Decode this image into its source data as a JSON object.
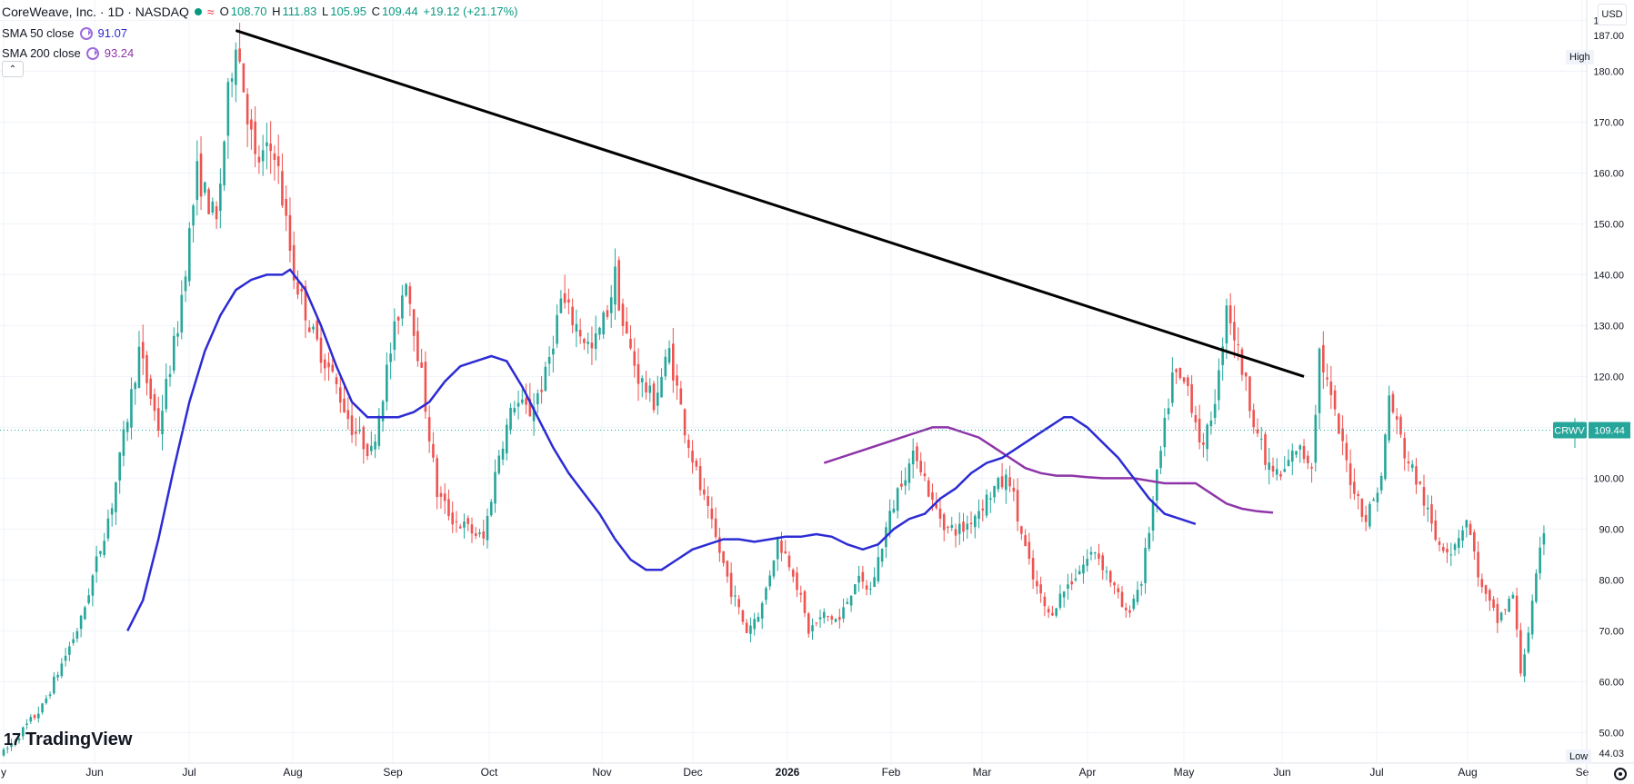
{
  "symbol": {
    "title": "CoreWeave, Inc. · 1D · NASDAQ",
    "ticker": "CRWV",
    "open_label": "O",
    "open": "108.70",
    "high_label": "H",
    "high": "111.83",
    "low_label": "L",
    "low": "105.95",
    "close_label": "C",
    "close": "109.44",
    "change": "+19.12 (+21.17%)",
    "status_icon": "market-status-dot",
    "wave_icon": "≈"
  },
  "indicators": [
    {
      "label": "SMA 50 close",
      "value": "91.07",
      "color": "#2c2bd4"
    },
    {
      "label": "SMA 200 close",
      "value": "93.24",
      "color": "#8e34a8"
    }
  ],
  "currency": "USD",
  "high_marker": {
    "label": "High",
    "value": "187.00"
  },
  "low_marker": {
    "label": "Low",
    "value": "44.03"
  },
  "price_tag": {
    "ticker": "CRWV",
    "value": "109.44"
  },
  "branding": {
    "name": "TradingView",
    "mark": "17"
  },
  "colors": {
    "up": "#089981",
    "down": "#f23645",
    "upCandle": "#26a69a",
    "downCandle": "#ef5350",
    "trendline": "#000000",
    "grid": "#f0f3fa"
  },
  "chart_data": {
    "type": "candlestick",
    "title": "CoreWeave, Inc. · 1D · NASDAQ",
    "ylim": [
      44,
      194
    ],
    "y_ticks": [
      "190.00",
      "180.00",
      "170.00",
      "160.00",
      "150.00",
      "140.00",
      "130.00",
      "120.00",
      "110.00",
      "100.00",
      "90.00",
      "80.00",
      "70.00",
      "60.00",
      "50.00"
    ],
    "x_labels": [
      "y",
      "Jun",
      "Jul",
      "Aug",
      "Sep",
      "Oct",
      "Nov",
      "Dec",
      "2026",
      "Feb",
      "Mar",
      "Apr",
      "May",
      "Jun",
      "Jul",
      "Aug",
      "Se"
    ],
    "grid": true,
    "price_anchors": [
      [
        0,
        46
      ],
      [
        10,
        55
      ],
      [
        20,
        72
      ],
      [
        28,
        95
      ],
      [
        35,
        125
      ],
      [
        40,
        110
      ],
      [
        45,
        130
      ],
      [
        50,
        160
      ],
      [
        55,
        150
      ],
      [
        58,
        175
      ],
      [
        60,
        187
      ],
      [
        65,
        162
      ],
      [
        70,
        165
      ],
      [
        75,
        140
      ],
      [
        80,
        128
      ],
      [
        85,
        120
      ],
      [
        90,
        110
      ],
      [
        95,
        105
      ],
      [
        100,
        125
      ],
      [
        104,
        140
      ],
      [
        108,
        120
      ],
      [
        112,
        97
      ],
      [
        116,
        92
      ],
      [
        120,
        90
      ],
      [
        124,
        88
      ],
      [
        128,
        105
      ],
      [
        132,
        115
      ],
      [
        136,
        113
      ],
      [
        140,
        120
      ],
      [
        144,
        135
      ],
      [
        148,
        130
      ],
      [
        152,
        125
      ],
      [
        156,
        133
      ],
      [
        158,
        140
      ],
      [
        160,
        130
      ],
      [
        164,
        120
      ],
      [
        168,
        115
      ],
      [
        172,
        125
      ],
      [
        176,
        110
      ],
      [
        180,
        98
      ],
      [
        184,
        88
      ],
      [
        188,
        78
      ],
      [
        192,
        70
      ],
      [
        196,
        75
      ],
      [
        200,
        88
      ],
      [
        204,
        82
      ],
      [
        208,
        70
      ],
      [
        212,
        73
      ],
      [
        216,
        72
      ],
      [
        220,
        80
      ],
      [
        224,
        78
      ],
      [
        228,
        90
      ],
      [
        232,
        100
      ],
      [
        236,
        105
      ],
      [
        240,
        95
      ],
      [
        244,
        90
      ],
      [
        248,
        90
      ],
      [
        252,
        94
      ],
      [
        256,
        98
      ],
      [
        260,
        100
      ],
      [
        262,
        92
      ],
      [
        266,
        80
      ],
      [
        270,
        73
      ],
      [
        274,
        78
      ],
      [
        278,
        82
      ],
      [
        282,
        86
      ],
      [
        286,
        80
      ],
      [
        290,
        73
      ],
      [
        294,
        80
      ],
      [
        298,
        100
      ],
      [
        302,
        120
      ],
      [
        306,
        118
      ],
      [
        310,
        105
      ],
      [
        314,
        120
      ],
      [
        316,
        135
      ],
      [
        318,
        128
      ],
      [
        322,
        115
      ],
      [
        326,
        103
      ],
      [
        330,
        100
      ],
      [
        334,
        106
      ],
      [
        338,
        103
      ],
      [
        340,
        125
      ],
      [
        344,
        112
      ],
      [
        348,
        100
      ],
      [
        352,
        92
      ],
      [
        356,
        100
      ],
      [
        358,
        116
      ],
      [
        362,
        105
      ],
      [
        366,
        98
      ],
      [
        370,
        88
      ],
      [
        374,
        86
      ],
      [
        378,
        92
      ],
      [
        382,
        78
      ],
      [
        386,
        72
      ],
      [
        390,
        77
      ],
      [
        392,
        62
      ],
      [
        394,
        70
      ],
      [
        398,
        90
      ],
      [
        402,
        89
      ],
      [
        406,
        109.44
      ]
    ],
    "sma50": [
      [
        32,
        70
      ],
      [
        36,
        76
      ],
      [
        40,
        88
      ],
      [
        44,
        102
      ],
      [
        48,
        115
      ],
      [
        52,
        125
      ],
      [
        56,
        132
      ],
      [
        60,
        137
      ],
      [
        64,
        139
      ],
      [
        68,
        140
      ],
      [
        72,
        140
      ],
      [
        74,
        141
      ],
      [
        78,
        137
      ],
      [
        82,
        130
      ],
      [
        86,
        122
      ],
      [
        90,
        115
      ],
      [
        94,
        112
      ],
      [
        98,
        112
      ],
      [
        102,
        112
      ],
      [
        106,
        113
      ],
      [
        110,
        115
      ],
      [
        114,
        119
      ],
      [
        118,
        122
      ],
      [
        122,
        123
      ],
      [
        126,
        124
      ],
      [
        130,
        123
      ],
      [
        134,
        118
      ],
      [
        138,
        112
      ],
      [
        142,
        106
      ],
      [
        146,
        101
      ],
      [
        150,
        97
      ],
      [
        154,
        93
      ],
      [
        158,
        88
      ],
      [
        162,
        84
      ],
      [
        166,
        82
      ],
      [
        170,
        82
      ],
      [
        174,
        84
      ],
      [
        178,
        86
      ],
      [
        182,
        87
      ],
      [
        186,
        88
      ],
      [
        190,
        88
      ],
      [
        194,
        87.5
      ],
      [
        198,
        88
      ],
      [
        202,
        88.5
      ],
      [
        206,
        88.5
      ],
      [
        210,
        89
      ],
      [
        214,
        88.5
      ],
      [
        218,
        87
      ],
      [
        222,
        86
      ],
      [
        226,
        87
      ],
      [
        230,
        90
      ],
      [
        234,
        92
      ],
      [
        238,
        93
      ],
      [
        242,
        96
      ],
      [
        246,
        98
      ],
      [
        250,
        101
      ],
      [
        254,
        103
      ],
      [
        258,
        104
      ],
      [
        262,
        106
      ],
      [
        266,
        108
      ],
      [
        270,
        110
      ],
      [
        274,
        112
      ],
      [
        276,
        112
      ],
      [
        280,
        110
      ],
      [
        284,
        107
      ],
      [
        288,
        104
      ],
      [
        292,
        100
      ],
      [
        296,
        96
      ],
      [
        300,
        93
      ],
      [
        304,
        92
      ],
      [
        308,
        91
      ]
    ],
    "sma200": [
      [
        212,
        103
      ],
      [
        216,
        104
      ],
      [
        220,
        105
      ],
      [
        224,
        106
      ],
      [
        228,
        107
      ],
      [
        232,
        108
      ],
      [
        236,
        109
      ],
      [
        240,
        110
      ],
      [
        244,
        110
      ],
      [
        248,
        109
      ],
      [
        252,
        108
      ],
      [
        256,
        106
      ],
      [
        260,
        104
      ],
      [
        264,
        102
      ],
      [
        268,
        101
      ],
      [
        272,
        100.5
      ],
      [
        276,
        100.5
      ],
      [
        280,
        100.2
      ],
      [
        284,
        100
      ],
      [
        288,
        100
      ],
      [
        292,
        100
      ],
      [
        296,
        99.5
      ],
      [
        300,
        99
      ],
      [
        304,
        99
      ],
      [
        308,
        99
      ],
      [
        312,
        97
      ],
      [
        316,
        95
      ],
      [
        320,
        94
      ],
      [
        324,
        93.5
      ],
      [
        328,
        93.24
      ]
    ],
    "trendline": [
      [
        60,
        188
      ],
      [
        336,
        120
      ]
    ]
  }
}
